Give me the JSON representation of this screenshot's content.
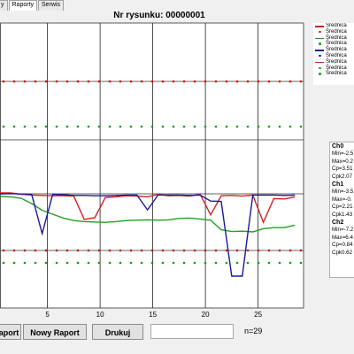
{
  "tabs": [
    {
      "label": "y"
    },
    {
      "label": "Raporty"
    },
    {
      "label": "Serwis"
    }
  ],
  "chart_data": {
    "type": "line",
    "title": "Nr rysunku: 00000001",
    "x_ticks": [
      5,
      10,
      15,
      20,
      25
    ],
    "xlim": [
      0.5,
      28.5
    ],
    "control_limits": [
      {
        "name": "upper-dotted-red",
        "color": "#cc0000",
        "level": "upper"
      },
      {
        "name": "upper-dotted-green",
        "color": "#00a000",
        "level": "upper-warning"
      },
      {
        "name": "lower-dotted-red",
        "color": "#cc0000",
        "level": "lower"
      },
      {
        "name": "lower-dotted-green",
        "color": "#00a000",
        "level": "lower-warning"
      }
    ],
    "series": [
      {
        "color": "#d62020",
        "values": [
          0.5,
          0.5,
          0.9,
          1.1,
          1.2,
          1.3,
          1.3,
          1.4,
          8.0,
          7.5,
          1.8,
          1.6,
          1.3,
          1.4,
          1.6,
          0.9,
          1.3,
          1.2,
          1.4,
          0.9,
          6.7,
          1.3,
          1.2,
          1.4,
          1.1,
          8.8,
          2.1,
          2.2,
          1.6
        ]
      },
      {
        "color": "#22a022",
        "values": [
          1.5,
          1.6,
          2.0,
          3.5,
          5.4,
          6.5,
          7.6,
          8.3,
          8.6,
          8.7,
          8.8,
          8.6,
          8.3,
          8.2,
          8.1,
          8.2,
          8.1,
          7.7,
          7.6,
          7.9,
          8.2,
          10.9,
          11.4,
          11.3,
          11.5,
          10.6,
          10.3,
          10.3,
          9.6
        ]
      },
      {
        "color": "#1a1a9c",
        "values": [
          0.8,
          0.7,
          0.8,
          0.9,
          12.0,
          0.9,
          1.0,
          1.2,
          1.2,
          1.3,
          1.3,
          1.2,
          1.1,
          1.1,
          5.3,
          1.1,
          1.1,
          1.1,
          1.2,
          1.1,
          2.8,
          2.9,
          24.0,
          24.0,
          1.1,
          1.1,
          1.1,
          1.2,
          1.1
        ]
      }
    ]
  },
  "legend": [
    {
      "label": "Średnica",
      "style": "line",
      "color": "#d62020"
    },
    {
      "label": "Średnica",
      "style": "dot",
      "color": "#d62020"
    },
    {
      "label": "Średnica",
      "style": "line",
      "color": "#22a022"
    },
    {
      "label": "Średnica",
      "style": "dot",
      "color": "#22a022"
    },
    {
      "label": "Średnica",
      "style": "line",
      "color": "#1a1a9c"
    },
    {
      "label": "Średnica",
      "style": "dot",
      "color": "#1a1a9c"
    },
    {
      "label": "Średnica",
      "style": "line",
      "color": "#d62020"
    },
    {
      "label": "Średnica",
      "style": "dot",
      "color": "#22a022"
    },
    {
      "label": "Średnica",
      "style": "dot",
      "color": "#22a022"
    }
  ],
  "stats": [
    {
      "head": "Ch0",
      "lines": [
        "Min=-2.5",
        "Max=0.2",
        "Cp=3.51",
        "Cpk2.07"
      ]
    },
    {
      "head": "Ch1",
      "lines": [
        "Min=-3.5",
        "Max=-0.",
        "Cp=2.21",
        "Cpk1.43"
      ]
    },
    {
      "head": "Ch2",
      "lines": [
        "Min=-7.2",
        "Max=6.4",
        "Cp=0.84",
        "Cpk0.62"
      ]
    }
  ],
  "buttons": {
    "raport": "aport",
    "nowy_raport": "Nowy Raport",
    "drukuj": "Drukuj"
  },
  "count_label": "n=29"
}
